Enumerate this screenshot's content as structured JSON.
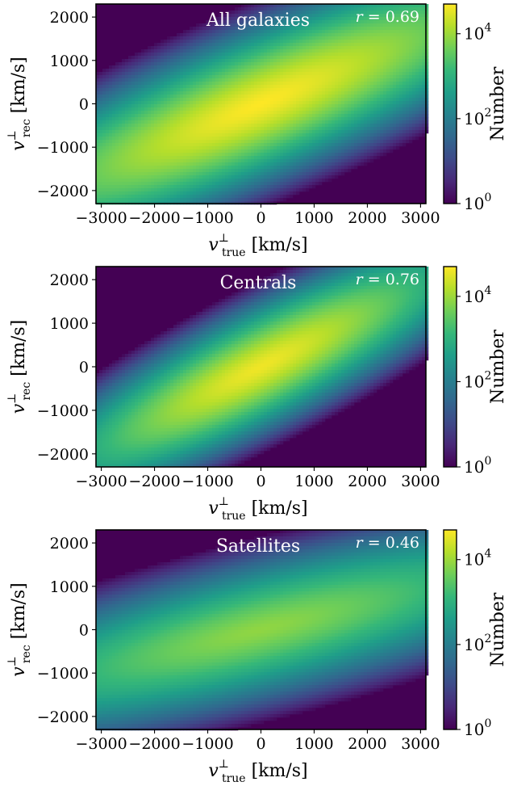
{
  "chart_data": [
    {
      "type": "heatmap",
      "title": "All galaxies",
      "annotation": "r = 0.69",
      "r_symbol": "r",
      "r_value": "= 0.69",
      "correlation_r": 0.69,
      "xlabel": {
        "sym": "v",
        "sup": "⊥",
        "sub": "true",
        "unit": " [km/s]"
      },
      "ylabel": {
        "sym": "v",
        "sup": "⊥",
        "sub": "rec",
        "unit": " [km/s]"
      },
      "xlim": [
        -3100,
        3100
      ],
      "ylim": [
        -2300,
        2300
      ],
      "xticks": [
        -3000,
        -2000,
        -1000,
        0,
        1000,
        2000,
        3000
      ],
      "xtick_labels": [
        "−3000",
        "−2000",
        "−1000",
        "0",
        "1000",
        "2000",
        "3000"
      ],
      "yticks": [
        -2000,
        -1000,
        0,
        1000,
        2000
      ],
      "ytick_labels": [
        "−2000",
        "−1000",
        "0",
        "1000",
        "2000"
      ],
      "distribution": {
        "center": [
          0,
          0
        ],
        "slope": 0.5,
        "spread_x": 1000,
        "spread_y": 300,
        "peak_count": 50000
      },
      "colorbar": {
        "label": "Number",
        "scale": "log",
        "range": [
          1,
          50000
        ],
        "ticks": [
          {
            "base": "10",
            "exp": "0"
          },
          {
            "base": "10",
            "exp": "2"
          },
          {
            "base": "10",
            "exp": "4"
          }
        ]
      },
      "grid": false
    },
    {
      "type": "heatmap",
      "title": "Centrals",
      "annotation": "r = 0.76",
      "r_symbol": "r",
      "r_value": "= 0.76",
      "correlation_r": 0.76,
      "xlabel": {
        "sym": "v",
        "sup": "⊥",
        "sub": "true",
        "unit": " [km/s]"
      },
      "ylabel": {
        "sym": "v",
        "sup": "⊥",
        "sub": "rec",
        "unit": " [km/s]"
      },
      "xlim": [
        -3100,
        3100
      ],
      "ylim": [
        -2300,
        2300
      ],
      "xticks": [
        -3000,
        -2000,
        -1000,
        0,
        1000,
        2000,
        3000
      ],
      "xtick_labels": [
        "−3000",
        "−2000",
        "−1000",
        "0",
        "1000",
        "2000",
        "3000"
      ],
      "yticks": [
        -2000,
        -1000,
        0,
        1000,
        2000
      ],
      "ytick_labels": [
        "−2000",
        "−1000",
        "0",
        "1000",
        "2000"
      ],
      "distribution": {
        "center": [
          0,
          0
        ],
        "slope": 0.6,
        "spread_x": 750,
        "spread_y": 250,
        "peak_count": 40000
      },
      "colorbar": {
        "label": "Number",
        "scale": "log",
        "range": [
          1,
          50000
        ],
        "ticks": [
          {
            "base": "10",
            "exp": "0"
          },
          {
            "base": "10",
            "exp": "2"
          },
          {
            "base": "10",
            "exp": "4"
          }
        ]
      },
      "grid": false
    },
    {
      "type": "heatmap",
      "title": "Satellites",
      "annotation": "r = 0.46",
      "r_symbol": "r",
      "r_value": "= 0.46",
      "correlation_r": 0.46,
      "xlabel": {
        "sym": "v",
        "sup": "⊥",
        "sub": "true",
        "unit": " [km/s]"
      },
      "ylabel": {
        "sym": "v",
        "sup": "⊥",
        "sub": "rec",
        "unit": " [km/s]"
      },
      "xlim": [
        -3100,
        3100
      ],
      "ylim": [
        -2300,
        2300
      ],
      "xticks": [
        -3000,
        -2000,
        -1000,
        0,
        1000,
        2000,
        3000
      ],
      "xtick_labels": [
        "−3000",
        "−2000",
        "−1000",
        "0",
        "1000",
        "2000",
        "3000"
      ],
      "yticks": [
        -2000,
        -1000,
        0,
        1000,
        2000
      ],
      "ytick_labels": [
        "−2000",
        "−1000",
        "0",
        "1000",
        "2000"
      ],
      "distribution": {
        "center": [
          0,
          0
        ],
        "slope": 0.3,
        "spread_x": 1250,
        "spread_y": 300,
        "peak_count": 8000
      },
      "colorbar": {
        "label": "Number",
        "scale": "log",
        "range": [
          1,
          50000
        ],
        "ticks": [
          {
            "base": "10",
            "exp": "0"
          },
          {
            "base": "10",
            "exp": "2"
          },
          {
            "base": "10",
            "exp": "4"
          }
        ]
      },
      "grid": false
    }
  ],
  "colormap": [
    "#440154",
    "#482878",
    "#3e4a89",
    "#31688e",
    "#26828e",
    "#1f9e89",
    "#35b779",
    "#6ece58",
    "#b5de2b",
    "#fde725"
  ]
}
